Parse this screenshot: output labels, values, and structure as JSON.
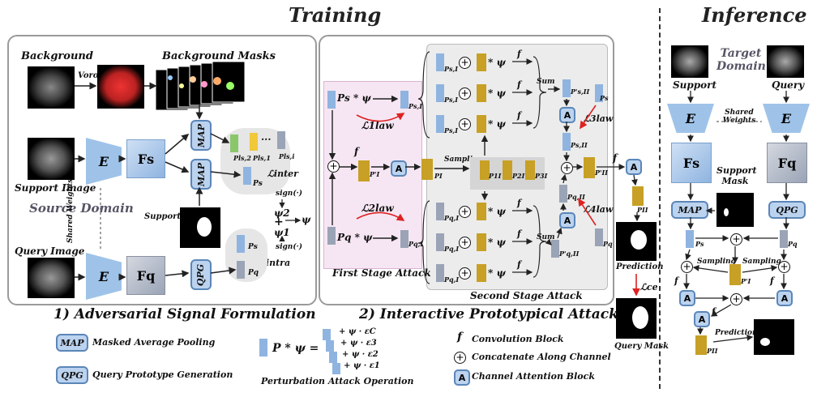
{
  "titles": {
    "training": "Training",
    "inference": "Inference"
  },
  "section1": {
    "caption": "1) Adversarial Signal Formulation",
    "background": "Background",
    "voro": "Voro.",
    "background_masks": "Background Masks",
    "support_image": "Support Image",
    "query_image": "Query Image",
    "source_domain": "Source Domain",
    "shared_weights": "Shared Weights",
    "support_mask": "Support Mask",
    "encoder": "E",
    "fs": "Fs",
    "fq": "Fq",
    "map": "MAP",
    "qpg": "QPG",
    "l_inter": "ℒinter",
    "l_intra": "ℒintra",
    "sign": "sign(·)",
    "psi": "ψ",
    "psi1": "ψ1",
    "psi2": "ψ2",
    "p_s": "Ps",
    "p_q": "Pq",
    "p_s1": "Pls,1",
    "p_s2": "Pls,2",
    "p_si": "Pls,i",
    "dots": "..."
  },
  "section2": {
    "caption": "2) Interactive Prototypical Attack",
    "first_stage": "First Stage Attack",
    "second_stage": "Second Stage Attack",
    "ps_psi": "Ps * ψ",
    "pq_psi": "Pq * ψ",
    "law1": "ℒ1law",
    "law2": "ℒ2law",
    "law3": "ℒ3law",
    "law4": "ℒ4law",
    "sampling": "Sampling",
    "sum": "Sum",
    "f": "f",
    "a": "A",
    "p_sI": "Ps,I",
    "p_qI": "Pq,I",
    "p_I": "PI",
    "p_I_prime": "P'I",
    "p_1": "P1I",
    "p_2": "P2I",
    "p_3": "P3I",
    "p_sII": "Ps,II",
    "p_sII_prime": "P's,II",
    "p_qII": "Pq,II",
    "p_qII_prime": "P'q,II",
    "p_II_prime": "P'II",
    "p_II": "PII",
    "p_s": "Ps",
    "p_q": "Pq",
    "times_psi": "* ψ",
    "prediction": "Prediction",
    "l_ce": "ℒce",
    "query_mask": "Query Mask"
  },
  "inference": {
    "target_domain": "Target Domain",
    "support": "Support",
    "query": "Query",
    "shared_weights": "Shared Weights",
    "encoder": "E",
    "fs": "Fs",
    "fq": "Fq",
    "support_mask": "Support Mask",
    "map": "MAP",
    "qpg": "QPG",
    "sampling": "Sampling",
    "f": "f",
    "a": "A",
    "p_s": "Ps",
    "p_q": "Pq",
    "p_I_prime": "P'I",
    "p_II": "PII",
    "prediction": "Prediction"
  },
  "legend": {
    "map": "MAP",
    "map_desc": "Masked Average Pooling",
    "qpg": "QPG",
    "qpg_desc": "Query Prototype Generation",
    "perturb_lhs": "P * ψ =",
    "perturb_terms": [
      "+ ψ · εC",
      "+ ψ · ε3",
      "+ ψ · ε2",
      "+ ψ · ε1"
    ],
    "perturb_caption": "Perturbation Attack Operation",
    "f": "f",
    "f_desc": "Convolution Block",
    "concat_desc": "Concatenate Along Channel",
    "a": "A",
    "a_desc": "Channel Attention Block"
  },
  "colors": {
    "blue": "#bcd3ef",
    "blue_dark": "#5b86b8",
    "gold": "#c7a025",
    "gray": "#9ba4b4",
    "red": "#d22"
  }
}
